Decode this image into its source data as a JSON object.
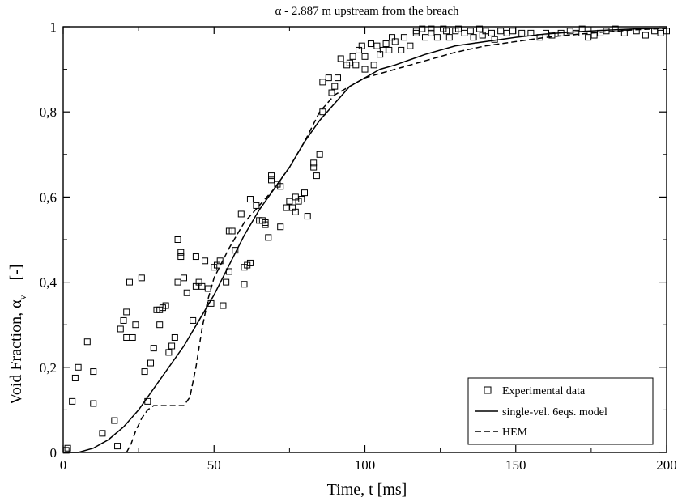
{
  "chart_data": {
    "type": "line",
    "title": "α - 2.887 m upstream from the breach",
    "xlabel": "Time, t  [ms]",
    "ylabel_main": "Void Fraction, α",
    "ylabel_sub": "v",
    "ylabel_unit": "[-]",
    "xlim": [
      0,
      200
    ],
    "ylim": [
      0,
      1
    ],
    "xticks": [
      0,
      50,
      100,
      150,
      200
    ],
    "xtick_labels": [
      "0",
      "50",
      "100",
      "150",
      "200"
    ],
    "yticks": [
      0,
      0.2,
      0.4,
      0.6,
      0.8,
      1
    ],
    "ytick_labels": [
      "0",
      "0,2",
      "0,4",
      "0,6",
      "0,8",
      "1"
    ],
    "grid": false,
    "legend_position": "bottom-right",
    "series": [
      {
        "name": "Experimental data",
        "style": "square-marker",
        "points": [
          [
            1,
            0.005
          ],
          [
            1.5,
            0.01
          ],
          [
            3,
            0.12
          ],
          [
            4,
            0.175
          ],
          [
            5,
            0.2
          ],
          [
            8,
            0.26
          ],
          [
            10,
            0.19
          ],
          [
            10,
            0.115
          ],
          [
            13,
            0.045
          ],
          [
            17,
            0.075
          ],
          [
            18,
            0.015
          ],
          [
            19,
            0.29
          ],
          [
            20,
            0.31
          ],
          [
            21,
            0.27
          ],
          [
            21,
            0.33
          ],
          [
            22,
            0.4
          ],
          [
            23,
            0.27
          ],
          [
            24,
            0.3
          ],
          [
            26,
            0.41
          ],
          [
            27,
            0.19
          ],
          [
            28,
            0.12
          ],
          [
            29,
            0.21
          ],
          [
            30,
            0.245
          ],
          [
            31,
            0.335
          ],
          [
            32,
            0.335
          ],
          [
            32,
            0.3
          ],
          [
            33,
            0.34
          ],
          [
            34,
            0.345
          ],
          [
            35,
            0.235
          ],
          [
            36,
            0.25
          ],
          [
            37,
            0.27
          ],
          [
            38,
            0.4
          ],
          [
            38,
            0.5
          ],
          [
            39,
            0.47
          ],
          [
            39,
            0.46
          ],
          [
            40,
            0.41
          ],
          [
            41,
            0.375
          ],
          [
            43,
            0.31
          ],
          [
            44,
            0.46
          ],
          [
            44,
            0.39
          ],
          [
            45,
            0.4
          ],
          [
            46,
            0.39
          ],
          [
            47,
            0.45
          ],
          [
            48,
            0.385
          ],
          [
            49,
            0.35
          ],
          [
            50,
            0.435
          ],
          [
            51,
            0.44
          ],
          [
            52,
            0.45
          ],
          [
            53,
            0.345
          ],
          [
            54,
            0.4
          ],
          [
            55,
            0.425
          ],
          [
            55,
            0.52
          ],
          [
            56,
            0.52
          ],
          [
            57,
            0.475
          ],
          [
            59,
            0.56
          ],
          [
            60,
            0.395
          ],
          [
            60,
            0.435
          ],
          [
            61,
            0.44
          ],
          [
            62,
            0.445
          ],
          [
            62,
            0.595
          ],
          [
            64,
            0.58
          ],
          [
            65,
            0.545
          ],
          [
            66,
            0.545
          ],
          [
            67,
            0.535
          ],
          [
            67,
            0.54
          ],
          [
            68,
            0.505
          ],
          [
            69,
            0.65
          ],
          [
            69,
            0.64
          ],
          [
            71,
            0.63
          ],
          [
            72,
            0.625
          ],
          [
            72,
            0.53
          ],
          [
            74,
            0.575
          ],
          [
            75,
            0.59
          ],
          [
            76,
            0.575
          ],
          [
            77,
            0.565
          ],
          [
            77,
            0.6
          ],
          [
            78,
            0.59
          ],
          [
            79,
            0.595
          ],
          [
            80,
            0.61
          ],
          [
            81,
            0.555
          ],
          [
            83,
            0.68
          ],
          [
            83,
            0.67
          ],
          [
            84,
            0.65
          ],
          [
            85,
            0.7
          ],
          [
            86,
            0.8
          ],
          [
            86,
            0.87
          ],
          [
            88,
            0.88
          ],
          [
            89,
            0.845
          ],
          [
            90,
            0.86
          ],
          [
            91,
            0.88
          ],
          [
            92,
            0.925
          ],
          [
            94,
            0.91
          ],
          [
            95,
            0.915
          ],
          [
            96,
            0.93
          ],
          [
            97,
            0.91
          ],
          [
            98,
            0.945
          ],
          [
            99,
            0.955
          ],
          [
            100,
            0.93
          ],
          [
            100,
            0.9
          ],
          [
            102,
            0.96
          ],
          [
            103,
            0.91
          ],
          [
            104,
            0.955
          ],
          [
            105,
            0.935
          ],
          [
            106,
            0.945
          ],
          [
            107,
            0.96
          ],
          [
            108,
            0.945
          ],
          [
            109,
            0.975
          ],
          [
            110,
            0.965
          ],
          [
            112,
            0.945
          ],
          [
            113,
            0.975
          ],
          [
            115,
            0.955
          ],
          [
            117,
            0.99
          ],
          [
            117,
            0.985
          ],
          [
            119,
            0.995
          ],
          [
            120,
            0.975
          ],
          [
            122,
            0.995
          ],
          [
            122,
            0.985
          ],
          [
            124,
            0.975
          ],
          [
            126,
            0.995
          ],
          [
            127,
            0.99
          ],
          [
            128,
            0.975
          ],
          [
            130,
            0.99
          ],
          [
            131,
            0.995
          ],
          [
            133,
            0.985
          ],
          [
            135,
            0.99
          ],
          [
            136,
            0.975
          ],
          [
            138,
            0.995
          ],
          [
            139,
            0.98
          ],
          [
            140,
            0.99
          ],
          [
            142,
            0.985
          ],
          [
            143,
            0.97
          ],
          [
            145,
            0.99
          ],
          [
            147,
            0.985
          ],
          [
            149,
            0.99
          ],
          [
            152,
            0.985
          ],
          [
            155,
            0.985
          ],
          [
            158,
            0.975
          ],
          [
            160,
            0.985
          ],
          [
            162,
            0.98
          ],
          [
            165,
            0.985
          ],
          [
            168,
            0.99
          ],
          [
            170,
            0.985
          ],
          [
            172,
            0.995
          ],
          [
            174,
            0.975
          ],
          [
            176,
            0.98
          ],
          [
            178,
            0.985
          ],
          [
            180,
            0.99
          ],
          [
            183,
            0.995
          ],
          [
            186,
            0.985
          ],
          [
            190,
            0.99
          ],
          [
            193,
            0.98
          ],
          [
            196,
            0.99
          ],
          [
            198,
            0.985
          ],
          [
            200,
            0.99
          ]
        ]
      },
      {
        "name": "single-vel. 6eqs. model",
        "style": "solid",
        "points": [
          [
            0,
            0
          ],
          [
            5,
            0
          ],
          [
            10,
            0.01
          ],
          [
            15,
            0.03
          ],
          [
            20,
            0.06
          ],
          [
            25,
            0.1
          ],
          [
            30,
            0.15
          ],
          [
            35,
            0.2
          ],
          [
            40,
            0.25
          ],
          [
            45,
            0.31
          ],
          [
            50,
            0.37
          ],
          [
            55,
            0.44
          ],
          [
            60,
            0.51
          ],
          [
            65,
            0.57
          ],
          [
            70,
            0.62
          ],
          [
            75,
            0.67
          ],
          [
            80,
            0.73
          ],
          [
            85,
            0.78
          ],
          [
            90,
            0.82
          ],
          [
            95,
            0.86
          ],
          [
            100,
            0.88
          ],
          [
            105,
            0.9
          ],
          [
            110,
            0.91
          ],
          [
            120,
            0.935
          ],
          [
            130,
            0.955
          ],
          [
            140,
            0.965
          ],
          [
            150,
            0.975
          ],
          [
            160,
            0.983
          ],
          [
            170,
            0.988
          ],
          [
            180,
            0.992
          ],
          [
            190,
            0.995
          ],
          [
            200,
            0.997
          ]
        ]
      },
      {
        "name": "HEM",
        "style": "dashed",
        "points": [
          [
            21,
            0
          ],
          [
            22.5,
            0.02
          ],
          [
            24,
            0.05
          ],
          [
            26,
            0.08
          ],
          [
            28,
            0.1
          ],
          [
            30,
            0.11
          ],
          [
            35,
            0.11
          ],
          [
            40,
            0.11
          ],
          [
            42,
            0.13
          ],
          [
            44,
            0.2
          ],
          [
            46,
            0.29
          ],
          [
            48,
            0.36
          ],
          [
            50,
            0.41
          ],
          [
            55,
            0.48
          ],
          [
            60,
            0.54
          ],
          [
            65,
            0.58
          ],
          [
            70,
            0.62
          ],
          [
            75,
            0.67
          ],
          [
            80,
            0.73
          ],
          [
            85,
            0.8
          ],
          [
            90,
            0.84
          ],
          [
            95,
            0.86
          ],
          [
            100,
            0.88
          ],
          [
            105,
            0.89
          ],
          [
            110,
            0.9
          ],
          [
            120,
            0.92
          ],
          [
            130,
            0.94
          ],
          [
            140,
            0.955
          ],
          [
            150,
            0.965
          ],
          [
            160,
            0.975
          ],
          [
            170,
            0.982
          ],
          [
            180,
            0.988
          ],
          [
            190,
            0.993
          ],
          [
            200,
            0.996
          ]
        ]
      }
    ]
  }
}
